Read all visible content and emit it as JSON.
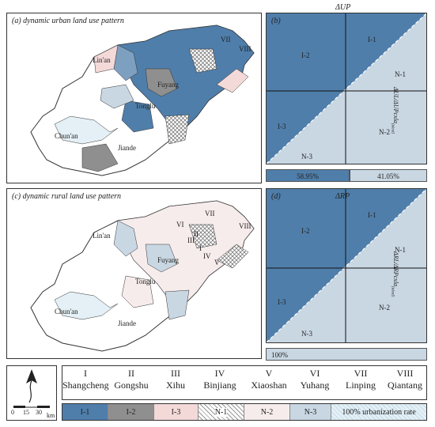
{
  "panels": {
    "a": {
      "title": "(a) dynamic urban  land use pattern"
    },
    "b": {
      "title": "(b)",
      "top_axis": "ΔUP",
      "right_axis": "ΔUL/ΔUPcxla",
      "right_axis_sub": "(ideal)"
    },
    "c": {
      "title": "(c) dynamic rural  land use pattern"
    },
    "d": {
      "title": "(d)",
      "top_axis": "ΔRP",
      "right_axis": "ΔRL/ΔRPcxla",
      "right_axis_sub": "(ideal)"
    }
  },
  "quadrants": {
    "i1": "I-1",
    "i2": "I-2",
    "i3": "I-3",
    "n1": "N-1",
    "n2": "N-2",
    "n3": "N-3"
  },
  "map_labels": {
    "linan": "Lin'an",
    "fuyang": "Fuyang",
    "tonglu": "Tonglu",
    "chunan": "Chun'an",
    "jiande": "Jiande",
    "vii": "VII",
    "viii": "VIII",
    "iii": "III",
    "i": "I",
    "ii": "II",
    "iv": "IV",
    "v": "V",
    "vi": "VI"
  },
  "urban_bar": {
    "left": "58.95%",
    "right": "41.05%"
  },
  "rural_bar": {
    "full": "100%"
  },
  "districts": [
    {
      "num": "I",
      "name": "Shangcheng"
    },
    {
      "num": "II",
      "name": "Gongshu"
    },
    {
      "num": "III",
      "name": "Xihu"
    },
    {
      "num": "IV",
      "name": "Binjiang"
    },
    {
      "num": "V",
      "name": "Xiaoshan"
    },
    {
      "num": "VI",
      "name": "Yuhang"
    },
    {
      "num": "VII",
      "name": "Linping"
    },
    {
      "num": "VIII",
      "name": "Qiantang"
    }
  ],
  "scale": {
    "t0": "0",
    "t1": "15",
    "t2": "30",
    "unit": "km"
  },
  "legend": [
    {
      "code": "I-1",
      "color": "#4f7eaa"
    },
    {
      "code": "I-2",
      "color": "#8f8f8f"
    },
    {
      "code": "I-3",
      "color": "#f4d9d9"
    },
    {
      "code": "N-1",
      "color": "#ffffff"
    },
    {
      "code": "N-2",
      "color": "#f7ecec"
    },
    {
      "code": "N-3",
      "color": "#c9d7e3"
    },
    {
      "code": "100% urbanization rate",
      "color": "#e4f0f6"
    }
  ]
}
